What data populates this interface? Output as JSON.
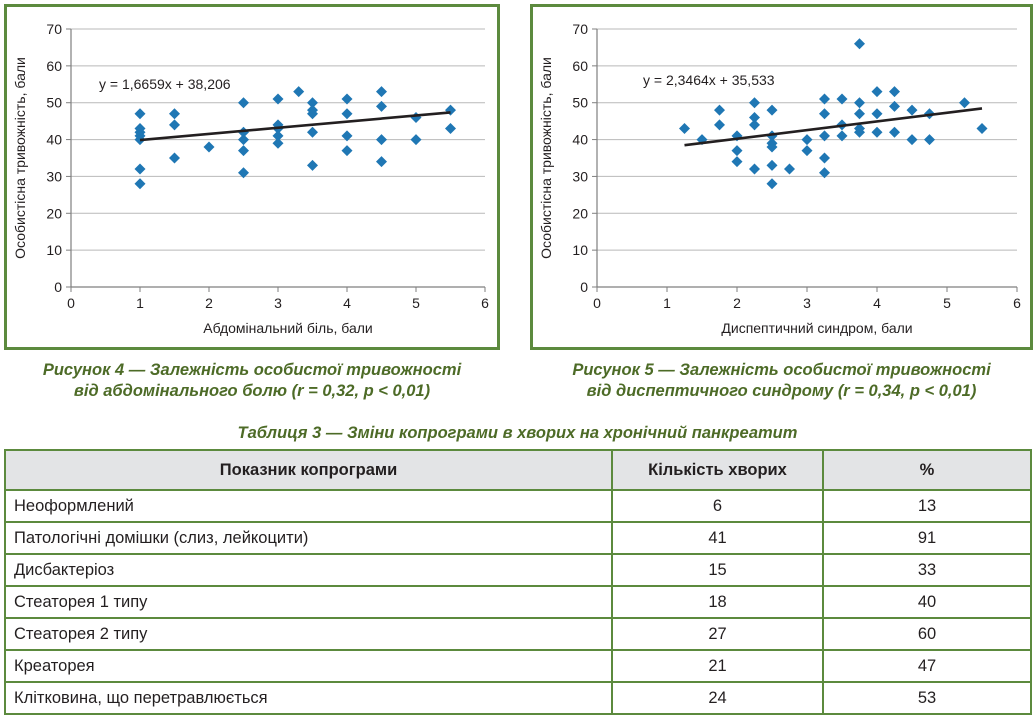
{
  "figures": [
    {
      "caption_line1": "Рисунок 4 — Залежність особистої тривожності",
      "caption_line2": "від абдомінального болю (r = 0,32, p < 0,01)"
    },
    {
      "caption_line1": "Рисунок 5 — Залежність особистої тривожності",
      "caption_line2": "від диспептичного синдрому (r = 0,34, p < 0,01)"
    }
  ],
  "chart_data": [
    {
      "type": "scatter",
      "xlabel": "Абдомінальний біль, бали",
      "ylabel": "Особистісна тривожність, бали",
      "xlim": [
        0,
        6
      ],
      "ylim": [
        0,
        70
      ],
      "x_ticks": [
        "0",
        "1",
        "2",
        "3",
        "4",
        "5",
        "6"
      ],
      "y_ticks": [
        "0",
        "10",
        "20",
        "30",
        "40",
        "50",
        "60",
        "70"
      ],
      "grid": "horizontal",
      "marker_color": "#1f77b4",
      "trendline": {
        "equation": "y = 1,6659x + 38,206",
        "slope": 1.6659,
        "intercept": 38.206,
        "x_range": [
          1,
          5.5
        ]
      },
      "points": [
        [
          1,
          47
        ],
        [
          1,
          43
        ],
        [
          1,
          42
        ],
        [
          1,
          41
        ],
        [
          1,
          40
        ],
        [
          1,
          32
        ],
        [
          1,
          28
        ],
        [
          1.5,
          47
        ],
        [
          1.5,
          44
        ],
        [
          1.5,
          35
        ],
        [
          2,
          38
        ],
        [
          2.5,
          50
        ],
        [
          2.5,
          42
        ],
        [
          2.5,
          40
        ],
        [
          2.5,
          37
        ],
        [
          2.5,
          31
        ],
        [
          3,
          51
        ],
        [
          3,
          44
        ],
        [
          3,
          43
        ],
        [
          3,
          41
        ],
        [
          3,
          39
        ],
        [
          3.3,
          53
        ],
        [
          3.5,
          50
        ],
        [
          3.5,
          48
        ],
        [
          3.5,
          47
        ],
        [
          3.5,
          42
        ],
        [
          3.5,
          33
        ],
        [
          4,
          51
        ],
        [
          4,
          47
        ],
        [
          4,
          41
        ],
        [
          4,
          37
        ],
        [
          4.5,
          53
        ],
        [
          4.5,
          49
        ],
        [
          4.5,
          40
        ],
        [
          4.5,
          34
        ],
        [
          5,
          46
        ],
        [
          5,
          40
        ],
        [
          5.5,
          48
        ],
        [
          5.5,
          43
        ]
      ]
    },
    {
      "type": "scatter",
      "xlabel": "Диспептичний синдром, бали",
      "ylabel": "Особистісна тривожність, бали",
      "xlim": [
        0,
        6
      ],
      "ylim": [
        0,
        70
      ],
      "x_ticks": [
        "0",
        "1",
        "2",
        "3",
        "4",
        "5",
        "6"
      ],
      "y_ticks": [
        "0",
        "10",
        "20",
        "30",
        "40",
        "50",
        "60",
        "70"
      ],
      "grid": "horizontal",
      "marker_color": "#1f77b4",
      "trendline": {
        "equation": "y = 2,3464x + 35,533",
        "slope": 2.3464,
        "intercept": 35.533,
        "x_range": [
          1.25,
          5.5
        ]
      },
      "points": [
        [
          1.25,
          43
        ],
        [
          1.5,
          40
        ],
        [
          1.75,
          48
        ],
        [
          1.75,
          44
        ],
        [
          2,
          41
        ],
        [
          2,
          37
        ],
        [
          2,
          34
        ],
        [
          2.25,
          50
        ],
        [
          2.25,
          46
        ],
        [
          2.25,
          44
        ],
        [
          2.25,
          32
        ],
        [
          2.5,
          48
        ],
        [
          2.5,
          41
        ],
        [
          2.5,
          39
        ],
        [
          2.5,
          38
        ],
        [
          2.5,
          33
        ],
        [
          2.5,
          28
        ],
        [
          2.75,
          32
        ],
        [
          3,
          40
        ],
        [
          3,
          37
        ],
        [
          3.25,
          51
        ],
        [
          3.25,
          47
        ],
        [
          3.25,
          41
        ],
        [
          3.25,
          35
        ],
        [
          3.25,
          31
        ],
        [
          3.5,
          51
        ],
        [
          3.5,
          44
        ],
        [
          3.5,
          41
        ],
        [
          3.75,
          66
        ],
        [
          3.75,
          50
        ],
        [
          3.75,
          47
        ],
        [
          3.75,
          43
        ],
        [
          3.75,
          42
        ],
        [
          4,
          53
        ],
        [
          4,
          47
        ],
        [
          4,
          42
        ],
        [
          4.25,
          53
        ],
        [
          4.25,
          49
        ],
        [
          4.25,
          42
        ],
        [
          4.5,
          48
        ],
        [
          4.5,
          40
        ],
        [
          4.75,
          47
        ],
        [
          4.75,
          40
        ],
        [
          5.25,
          50
        ],
        [
          5.5,
          43
        ]
      ]
    }
  ],
  "table": {
    "caption": "Таблиця 3 — Зміни копрограми в хворих на хронічний панкреатит",
    "headers": [
      "Показник копрограми",
      "Кількість хворих",
      "%"
    ],
    "rows": [
      [
        "Неоформлений",
        "6",
        "13"
      ],
      [
        "Патологічні домішки (слиз, лейкоцити)",
        "41",
        "91"
      ],
      [
        "Дисбактеріоз",
        "15",
        "33"
      ],
      [
        "Стеаторея 1 типу",
        "18",
        "40"
      ],
      [
        "Стеаторея 2 типу",
        "27",
        "60"
      ],
      [
        "Креаторея",
        "21",
        "47"
      ],
      [
        "Клітковина, що перетравлюється",
        "24",
        "53"
      ]
    ]
  }
}
